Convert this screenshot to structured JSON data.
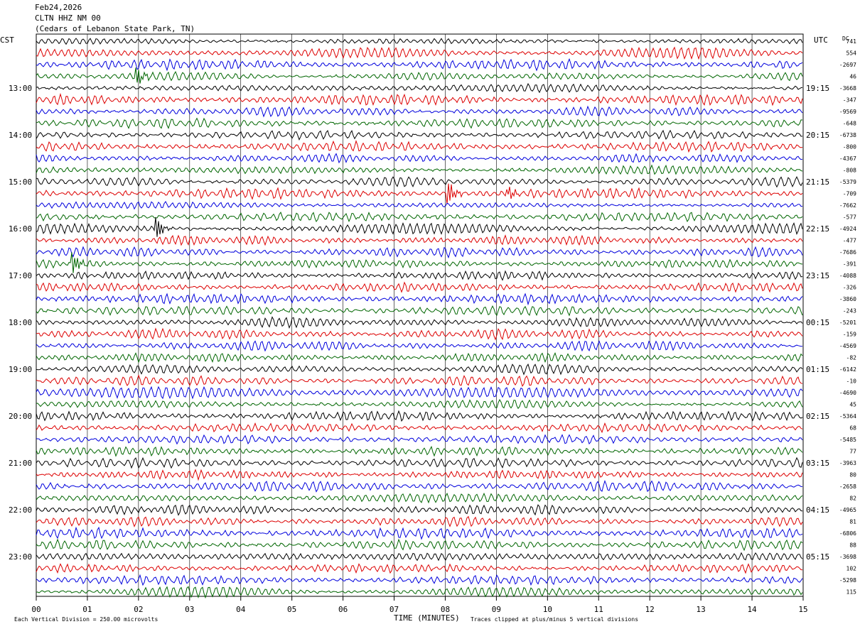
{
  "header": {
    "date": "Feb24,2026",
    "station": "CLTN HHZ NM 00",
    "location": "(Cedars of Lebanon State Park, TN)"
  },
  "left_tz": "CST",
  "right_tz": "UTC",
  "dc_label": "DC",
  "footer": {
    "scale_text": "Each Vertical Division =  250.00 microvolts",
    "clip_text": "Traces clipped at plus/minus 5 vertical divisions"
  },
  "colors": {
    "cycle": [
      "#000000",
      "#dd0000",
      "#0000dd",
      "#006600"
    ],
    "grid": "#000000"
  },
  "chart_data": {
    "type": "line",
    "xlabel": "TIME (MINUTES)",
    "x_ticks": [
      "00",
      "01",
      "02",
      "03",
      "04",
      "05",
      "06",
      "07",
      "08",
      "09",
      "10",
      "11",
      "12",
      "13",
      "14",
      "15"
    ],
    "xlim": [
      0,
      15
    ],
    "left_hour_labels": [
      "13:00",
      "14:00",
      "15:00",
      "16:00",
      "17:00",
      "18:00",
      "19:00",
      "20:00",
      "21:00",
      "22:00",
      "23:00"
    ],
    "right_hour_labels": [
      "19:15",
      "20:15",
      "21:15",
      "22:15",
      "23:15",
      "00:15",
      "01:15",
      "02:15",
      "03:15",
      "04:15",
      "05:15"
    ],
    "traces_per_hour": 4,
    "trace_count": 48,
    "dc_offsets": [
      "741",
      "554",
      "-2697",
      "46",
      "-3668",
      "-347",
      "-9569",
      "-648",
      "-6738",
      "-800",
      "-4367",
      "-808",
      "-5379",
      "-709",
      "-7662",
      "-577",
      "-4924",
      "-477",
      "-7686",
      "-391",
      "-4088",
      "-326",
      "-3860",
      "-243",
      "-5201",
      "-159",
      "-4569",
      "-82",
      "-6142",
      "-10",
      "-4690",
      "45",
      "-5364",
      "68",
      "-5485",
      "77",
      "-3963",
      "80",
      "-2658",
      "82",
      "-4965",
      "81",
      "-6806",
      "88",
      "-3698",
      "102",
      "-5298",
      "115"
    ],
    "events": [
      {
        "trace": 16,
        "minute": 2.35
      },
      {
        "trace": 13,
        "minute": 8.05
      },
      {
        "trace": 13,
        "minute": 9.2
      },
      {
        "trace": 3,
        "minute": 1.95
      },
      {
        "trace": 19,
        "minute": 0.7
      }
    ],
    "grid": true,
    "legend": "none"
  }
}
